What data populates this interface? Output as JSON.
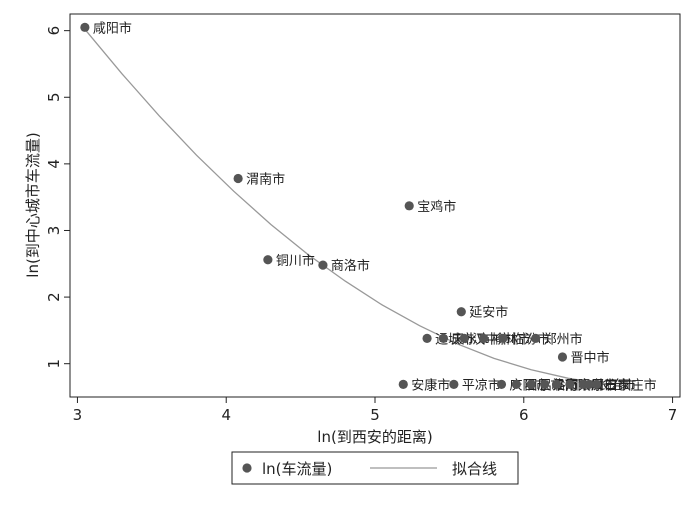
{
  "chart_data": {
    "type": "scatter",
    "xlabel": "ln(到西安的距离)",
    "ylabel": "ln(到中心城市车流量)",
    "xlim": [
      2.95,
      7.05
    ],
    "ylim": [
      0.5,
      6.25
    ],
    "xticks": [
      3,
      4,
      5,
      6,
      7
    ],
    "yticks": [
      1,
      2,
      3,
      4,
      5,
      6
    ],
    "grid": false,
    "legend_position": "bottom",
    "colors": {
      "points": "#555555",
      "fit_line": "#999999",
      "axis": "#222222"
    },
    "series": [
      {
        "name": "ln(车流量)",
        "kind": "scatter",
        "points": [
          {
            "label": "咸阳市",
            "x": 3.05,
            "y": 6.05
          },
          {
            "label": "渭南市",
            "x": 4.08,
            "y": 3.78
          },
          {
            "label": "宝鸡市",
            "x": 5.23,
            "y": 3.37
          },
          {
            "label": "铜川市",
            "x": 4.28,
            "y": 2.56
          },
          {
            "label": "商洛市",
            "x": 4.65,
            "y": 2.48
          },
          {
            "label": "延安市",
            "x": 5.58,
            "y": 1.78
          },
          {
            "label": "运城市",
            "x": 5.35,
            "y": 1.38
          },
          {
            "label": "天水市",
            "x": 5.46,
            "y": 1.38
          },
          {
            "label": "汉中市",
            "x": 5.6,
            "y": 1.38
          },
          {
            "label": "榆林市",
            "x": 5.73,
            "y": 1.38
          },
          {
            "label": "临汾市",
            "x": 5.86,
            "y": 1.38
          },
          {
            "label": "郑州市",
            "x": 6.08,
            "y": 1.38
          },
          {
            "label": "晋中市",
            "x": 6.26,
            "y": 1.1
          },
          {
            "label": "安康市",
            "x": 5.19,
            "y": 0.69
          },
          {
            "label": "平凉市",
            "x": 5.53,
            "y": 0.69
          },
          {
            "label": "庆阳市",
            "x": 5.85,
            "y": 0.69
          },
          {
            "label": "固原市",
            "x": 5.95,
            "y": 0.69
          },
          {
            "label": "吕梁市",
            "x": 6.05,
            "y": 0.69
          },
          {
            "label": "洛阳市",
            "x": 6.14,
            "y": 0.69
          },
          {
            "label": "南阳市",
            "x": 6.22,
            "y": 0.69
          },
          {
            "label": "太原市",
            "x": 6.31,
            "y": 0.69
          },
          {
            "label": "周口市",
            "x": 6.4,
            "y": 0.69
          },
          {
            "label": "长治市",
            "x": 6.44,
            "y": 0.69
          },
          {
            "label": "石家庄市",
            "x": 6.49,
            "y": 0.69
          }
        ]
      },
      {
        "name": "拟合线",
        "kind": "line",
        "x": [
          3.05,
          3.3,
          3.55,
          3.8,
          4.05,
          4.3,
          4.55,
          4.8,
          5.05,
          5.3,
          5.55,
          5.8,
          6.05,
          6.3,
          6.5
        ],
        "y": [
          6.02,
          5.35,
          4.72,
          4.13,
          3.59,
          3.09,
          2.64,
          2.24,
          1.88,
          1.57,
          1.3,
          1.08,
          0.91,
          0.78,
          0.71
        ]
      }
    ],
    "legend": [
      "ln(车流量)",
      "拟合线"
    ]
  }
}
